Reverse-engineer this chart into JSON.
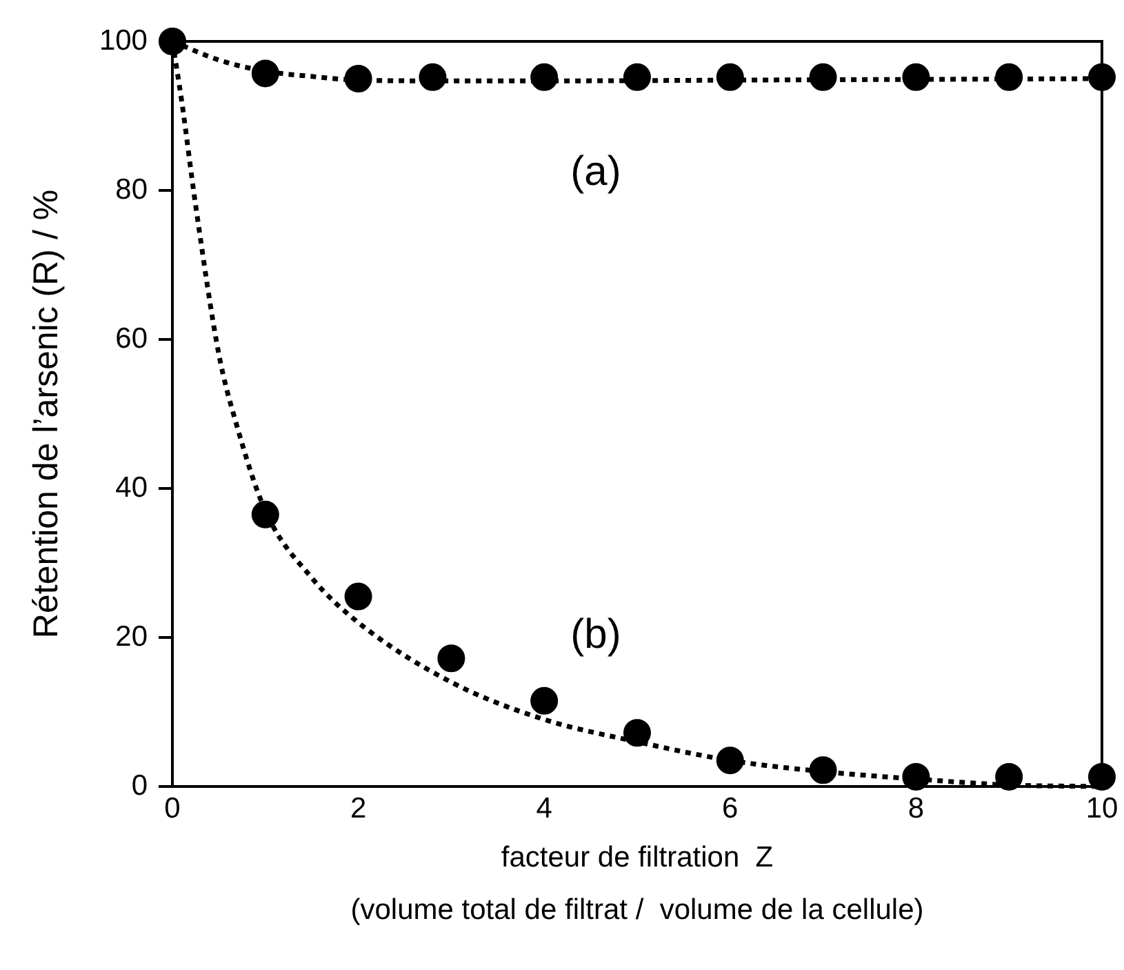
{
  "chart_data": {
    "type": "scatter",
    "xlabel": "facteur de filtration  Z\n(volume total de filtrat /  volume de la cellule)",
    "ylabel": "Rétention de l’arsenic (R) / %",
    "xlim": [
      0,
      10
    ],
    "xticks": [
      0,
      2,
      4,
      6,
      8,
      10
    ],
    "ylim": [
      0,
      100
    ],
    "yticks": [
      0,
      20,
      40,
      60,
      80,
      100
    ],
    "grid": false,
    "legend": false,
    "marker": "circle",
    "series": [
      {
        "type": "scatter",
        "name": "(a)",
        "color": "#000000",
        "x": [
          0,
          1,
          2,
          2.8,
          4,
          5,
          6,
          7,
          8,
          9,
          10
        ],
        "values": [
          100,
          95.7,
          95.0,
          95.2,
          95.2,
          95.2,
          95.2,
          95.2,
          95.2,
          95.2,
          95.2
        ]
      },
      {
        "type": "scatter",
        "name": "(b)",
        "color": "#000000",
        "x": [
          1,
          2,
          3,
          4,
          5,
          6,
          7,
          8,
          9,
          10
        ],
        "values": [
          36.5,
          25.5,
          17.2,
          11.5,
          7.2,
          3.5,
          2.2,
          1.3,
          1.3,
          1.3
        ]
      },
      {
        "type": "line",
        "color": "#000000",
        "line_style": "dotted",
        "marker": "none",
        "x": [
          0,
          0.5,
          1,
          1.5,
          2,
          3,
          4,
          6,
          8,
          10
        ],
        "values": [
          100,
          97.5,
          96,
          95.3,
          94.8,
          94.7,
          94.7,
          94.8,
          94.9,
          95
        ]
      },
      {
        "type": "line",
        "color": "#000000",
        "line_style": "dotted",
        "marker": "none",
        "x": [
          0,
          0.1,
          0.25,
          0.5,
          0.68,
          1,
          1.5,
          2,
          3,
          4,
          5,
          6,
          7,
          8,
          9,
          10
        ],
        "values": [
          100,
          92,
          78,
          58,
          49,
          37,
          28,
          22,
          14,
          9,
          6,
          3.5,
          2,
          1,
          0.2,
          0
        ]
      }
    ]
  }
}
